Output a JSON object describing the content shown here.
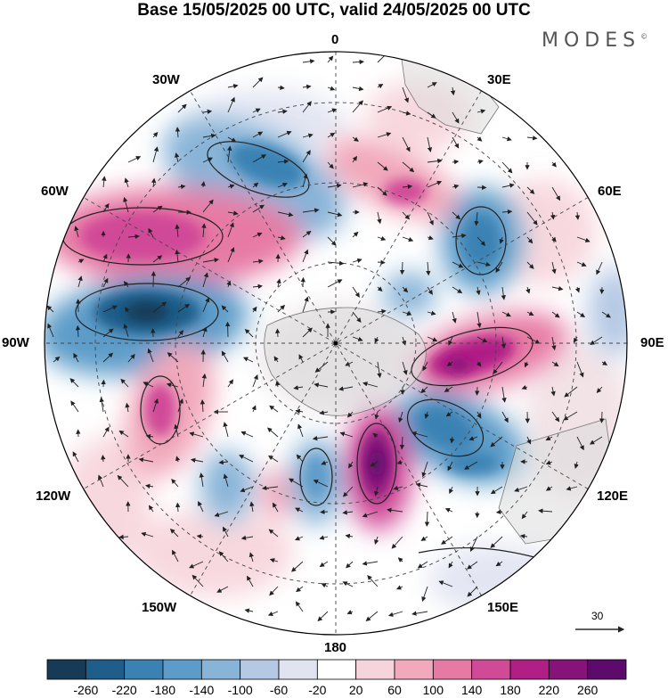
{
  "title": "Base 15/05/2025 00 UTC, valid 24/05/2025 00 UTC",
  "brand": "MODES",
  "brand_mark": "©",
  "lon_labels": {
    "l0": "0",
    "l30w": "30W",
    "l30e": "30E",
    "l60w": "60W",
    "l60e": "60E",
    "l90w": "90W",
    "l90e": "90E",
    "l120w": "120W",
    "l120e": "120E",
    "l150w": "150W",
    "l150e": "150E",
    "l180": "180"
  },
  "reference_vector": "30",
  "colorbar": {
    "ticks": [
      "-260",
      "-220",
      "-180",
      "-140",
      "-100",
      "-60",
      "-20",
      "20",
      "60",
      "100",
      "140",
      "180",
      "220",
      "260"
    ],
    "colors": [
      "#173a57",
      "#1f5d8a",
      "#3a82b4",
      "#5d9cc9",
      "#88b4d8",
      "#b6c9e4",
      "#e0e4f1",
      "#ffffff",
      "#f7d4db",
      "#f1a9bb",
      "#e77aa4",
      "#d04a98",
      "#b01f86",
      "#86137a",
      "#5c0b6c"
    ]
  },
  "chart_data": {
    "type": "heatmap",
    "projection": "south polar stereographic",
    "fields": [
      "shaded anomaly (-260 to 260)",
      "wind vectors",
      "contours"
    ],
    "features": [
      {
        "sign": "negative",
        "near": "45W, midlatitudes",
        "strength": "-180"
      },
      {
        "sign": "positive",
        "near": "70W",
        "strength": "+220"
      },
      {
        "sign": "negative",
        "near": "80W",
        "strength": "-260"
      },
      {
        "sign": "negative",
        "near": "50E",
        "strength": "-180"
      },
      {
        "sign": "positive",
        "near": "90E",
        "strength": "+220"
      },
      {
        "sign": "negative",
        "near": "115E",
        "strength": "-180"
      },
      {
        "sign": "positive",
        "near": "105W",
        "strength": "+180"
      },
      {
        "sign": "positive",
        "near": "165E",
        "strength": "+260"
      },
      {
        "sign": "negative",
        "near": "170W",
        "strength": "-180"
      },
      {
        "sign": "negative",
        "near": "130W",
        "strength": "-140"
      }
    ]
  }
}
